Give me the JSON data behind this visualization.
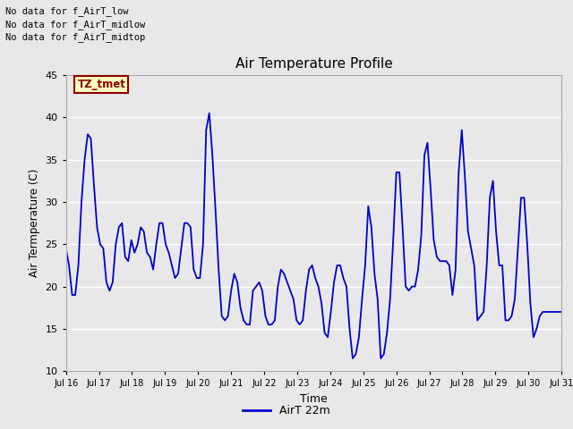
{
  "title": "Air Temperature Profile",
  "xlabel": "Time",
  "ylabel": "Air Termperature (C)",
  "ylim": [
    10,
    45
  ],
  "yticks": [
    10,
    15,
    20,
    25,
    30,
    35,
    40,
    45
  ],
  "bg_color": "#e8e8e8",
  "line_color": "#0000cc",
  "legend_label": "AirT 22m",
  "no_data_texts": [
    "No data for f_AirT_low",
    "No data for f_AirT_midlow",
    "No data for f_AirT_midtop"
  ],
  "tz_tmet_label": "TZ_tmet",
  "x_tick_labels": [
    "Jul 16",
    "Jul 17",
    "Jul 18",
    "Jul 19",
    "Jul 20",
    "Jul 21",
    "Jul 22",
    "Jul 23",
    "Jul 24",
    "Jul 25",
    "Jul 26",
    "Jul 27",
    "Jul 28",
    "Jul 29",
    "Jul 30",
    "Jul 31"
  ],
  "base_temp": [
    24.5,
    22.5,
    19.0,
    19.0,
    22.5,
    30.0,
    35.0,
    38.0,
    37.5,
    32.0,
    27.0,
    25.0,
    24.5,
    20.5,
    19.5,
    20.5,
    25.0,
    27.0,
    27.5,
    23.5,
    23.0,
    25.5,
    24.0,
    25.0,
    27.0,
    26.5,
    24.0,
    23.5,
    22.0,
    25.0,
    27.5,
    27.5,
    25.0,
    24.0,
    22.5,
    21.0,
    21.5,
    24.5,
    27.5,
    27.5,
    27.0,
    22.0,
    21.0,
    21.0,
    25.0,
    38.5,
    40.5,
    35.5,
    29.0,
    22.0,
    16.5,
    16.0,
    16.5,
    19.5,
    21.5,
    20.5,
    17.5,
    16.0,
    15.5,
    15.5,
    19.5,
    20.0,
    20.5,
    19.5,
    16.5,
    15.5,
    15.5,
    16.0,
    20.0,
    22.0,
    21.5,
    20.5,
    19.5,
    18.5,
    16.0,
    15.5,
    16.0,
    19.5,
    22.0,
    22.5,
    21.0,
    20.0,
    18.0,
    14.5,
    14.0,
    17.0,
    20.5,
    22.5,
    22.5,
    21.0,
    20.0,
    15.0,
    11.5,
    12.0,
    14.0,
    18.5,
    22.5,
    29.5,
    27.0,
    21.5,
    18.5,
    11.5,
    12.0,
    14.5,
    18.5,
    25.5,
    33.5,
    33.5,
    27.0,
    20.0,
    19.5,
    20.0,
    20.0,
    22.0,
    26.0,
    35.5,
    37.0,
    31.5,
    25.5,
    23.5,
    23.0,
    23.0,
    23.0,
    22.5,
    19.0,
    22.0,
    33.5,
    38.5,
    33.0,
    26.5,
    24.5,
    22.5,
    16.0,
    16.5,
    17.0,
    22.5,
    30.5,
    32.5,
    26.5,
    22.5,
    22.5,
    16.0,
    16.0,
    16.5,
    18.5,
    24.5,
    30.5,
    30.5,
    25.0,
    18.0,
    14.0,
    15.0,
    16.5,
    17.0,
    17.0,
    17.0,
    17.0,
    17.0,
    17.0,
    17.0
  ]
}
